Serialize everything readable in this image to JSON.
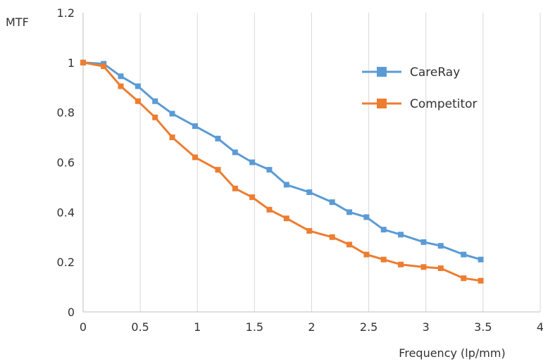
{
  "chart_data": {
    "type": "line",
    "title": "",
    "xlabel": "Frequency (lp/mm)",
    "ylabel": "MTF",
    "xlim": [
      0,
      4
    ],
    "ylim": [
      0,
      1.2
    ],
    "x_ticks": [
      "0",
      "0.5",
      "1",
      "1.5",
      "2",
      "2.5",
      "3",
      "3.5",
      "4"
    ],
    "y_ticks": [
      "0",
      "0.2",
      "0.4",
      "0.6",
      "0.8",
      "1",
      "1.2"
    ],
    "grid": "vertical",
    "legend_position": "right",
    "series": [
      {
        "name": "CareRay",
        "color": "#5B9BD5",
        "x": [
          0,
          0.18,
          0.33,
          0.48,
          0.63,
          0.78,
          0.98,
          1.18,
          1.33,
          1.48,
          1.63,
          1.78,
          1.98,
          2.18,
          2.33,
          2.48,
          2.63,
          2.78,
          2.98,
          3.13,
          3.33,
          3.48
        ],
        "y": [
          1.0,
          0.995,
          0.945,
          0.905,
          0.845,
          0.795,
          0.745,
          0.695,
          0.64,
          0.6,
          0.57,
          0.51,
          0.48,
          0.44,
          0.4,
          0.38,
          0.33,
          0.31,
          0.28,
          0.265,
          0.23,
          0.21
        ]
      },
      {
        "name": "Competitor",
        "color": "#ED7D31",
        "x": [
          0,
          0.18,
          0.33,
          0.48,
          0.63,
          0.78,
          0.98,
          1.18,
          1.33,
          1.48,
          1.63,
          1.78,
          1.98,
          2.18,
          2.33,
          2.48,
          2.63,
          2.78,
          2.98,
          3.13,
          3.33,
          3.48
        ],
        "y": [
          1.0,
          0.985,
          0.905,
          0.845,
          0.78,
          0.7,
          0.62,
          0.57,
          0.495,
          0.46,
          0.41,
          0.375,
          0.325,
          0.3,
          0.27,
          0.23,
          0.21,
          0.19,
          0.18,
          0.175,
          0.135,
          0.125
        ]
      }
    ]
  }
}
